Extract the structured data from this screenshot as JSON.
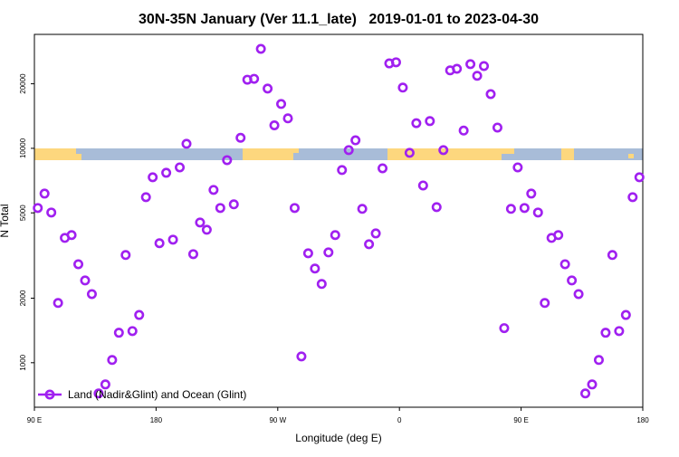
{
  "chart_data": {
    "type": "scatter",
    "title": "30N-35N January (Ver 11.1_late)   2019-01-01 to 2023-04-30",
    "xlabel": "Longitude (deg E)",
    "ylabel": "N Total",
    "log_y": true,
    "legend": "bottom-left",
    "xlim": [
      90,
      540
    ],
    "xticks": [
      {
        "value": 90,
        "label": "90 E"
      },
      {
        "value": 180,
        "label": "180"
      },
      {
        "value": 270,
        "label": "90 W"
      },
      {
        "value": 360,
        "label": "0"
      },
      {
        "value": 450,
        "label": "90 E"
      },
      {
        "value": 540,
        "label": "180"
      }
    ],
    "ylim": [
      620,
      34000
    ],
    "yticks": [
      1000,
      2000,
      5000,
      10000,
      20000
    ],
    "x": [
      92.5,
      97.5,
      102.5,
      107.5,
      112.5,
      117.5,
      122.5,
      127.5,
      132.5,
      137.5,
      142.5,
      147.5,
      152.5,
      157.5,
      162.5,
      167.5,
      172.5,
      177.5,
      182.5,
      187.5,
      192.5,
      197.5,
      202.5,
      207.5,
      212.5,
      217.5,
      222.5,
      227.5,
      232.5,
      237.5,
      242.5,
      247.5,
      252.5,
      257.5,
      262.5,
      267.5,
      272.5,
      277.5,
      282.5,
      287.5,
      292.5,
      297.5,
      302.5,
      307.5,
      312.5,
      317.5,
      322.5,
      327.5,
      332.5,
      337.5,
      342.5,
      347.5,
      352.5,
      357.5,
      362.5,
      367.5,
      372.5,
      377.5,
      382.5,
      387.5,
      392.5,
      397.5,
      402.5,
      407.5,
      412.5,
      417.5,
      422.5,
      427.5,
      432.5,
      437.5,
      442.5,
      447.5,
      452.5,
      457.5,
      462.5,
      467.5,
      472.5,
      477.5,
      482.5,
      487.5,
      492.5,
      497.5,
      502.5,
      507.5,
      512.5,
      517.5,
      522.5,
      527.5,
      532.5,
      537.5
    ],
    "series": [
      {
        "name": "Land (Nadir&Glint) and Ocean (Glint)",
        "color": "#a020f0",
        "values": [
          5270,
          6150,
          5020,
          1900,
          3820,
          3940,
          2880,
          2420,
          2090,
          719,
          792,
          1030,
          1380,
          3180,
          1405,
          1670,
          5920,
          7330,
          3610,
          7690,
          3750,
          8150,
          10500,
          3210,
          4510,
          4170,
          6400,
          5270,
          8810,
          5480,
          11200,
          20900,
          21100,
          29100,
          19000,
          12800,
          16100,
          13800,
          5270,
          1070,
          3240,
          2750,
          2330,
          3270,
          3940,
          7920,
          9810,
          10900,
          5220,
          3570,
          4010,
          8070,
          24900,
          25200,
          19200,
          9530,
          13100,
          6710,
          13400,
          5320,
          9810,
          23100,
          23500,
          12100,
          24700,
          21800,
          24200,
          17900,
          12500,
          1450,
          5220,
          8150,
          5270,
          6150,
          5020,
          1900,
          3820,
          3940,
          2880,
          2420,
          2090,
          719,
          792,
          1030,
          1380,
          3180,
          1405,
          1670,
          5920,
          7330
        ]
      }
    ]
  }
}
